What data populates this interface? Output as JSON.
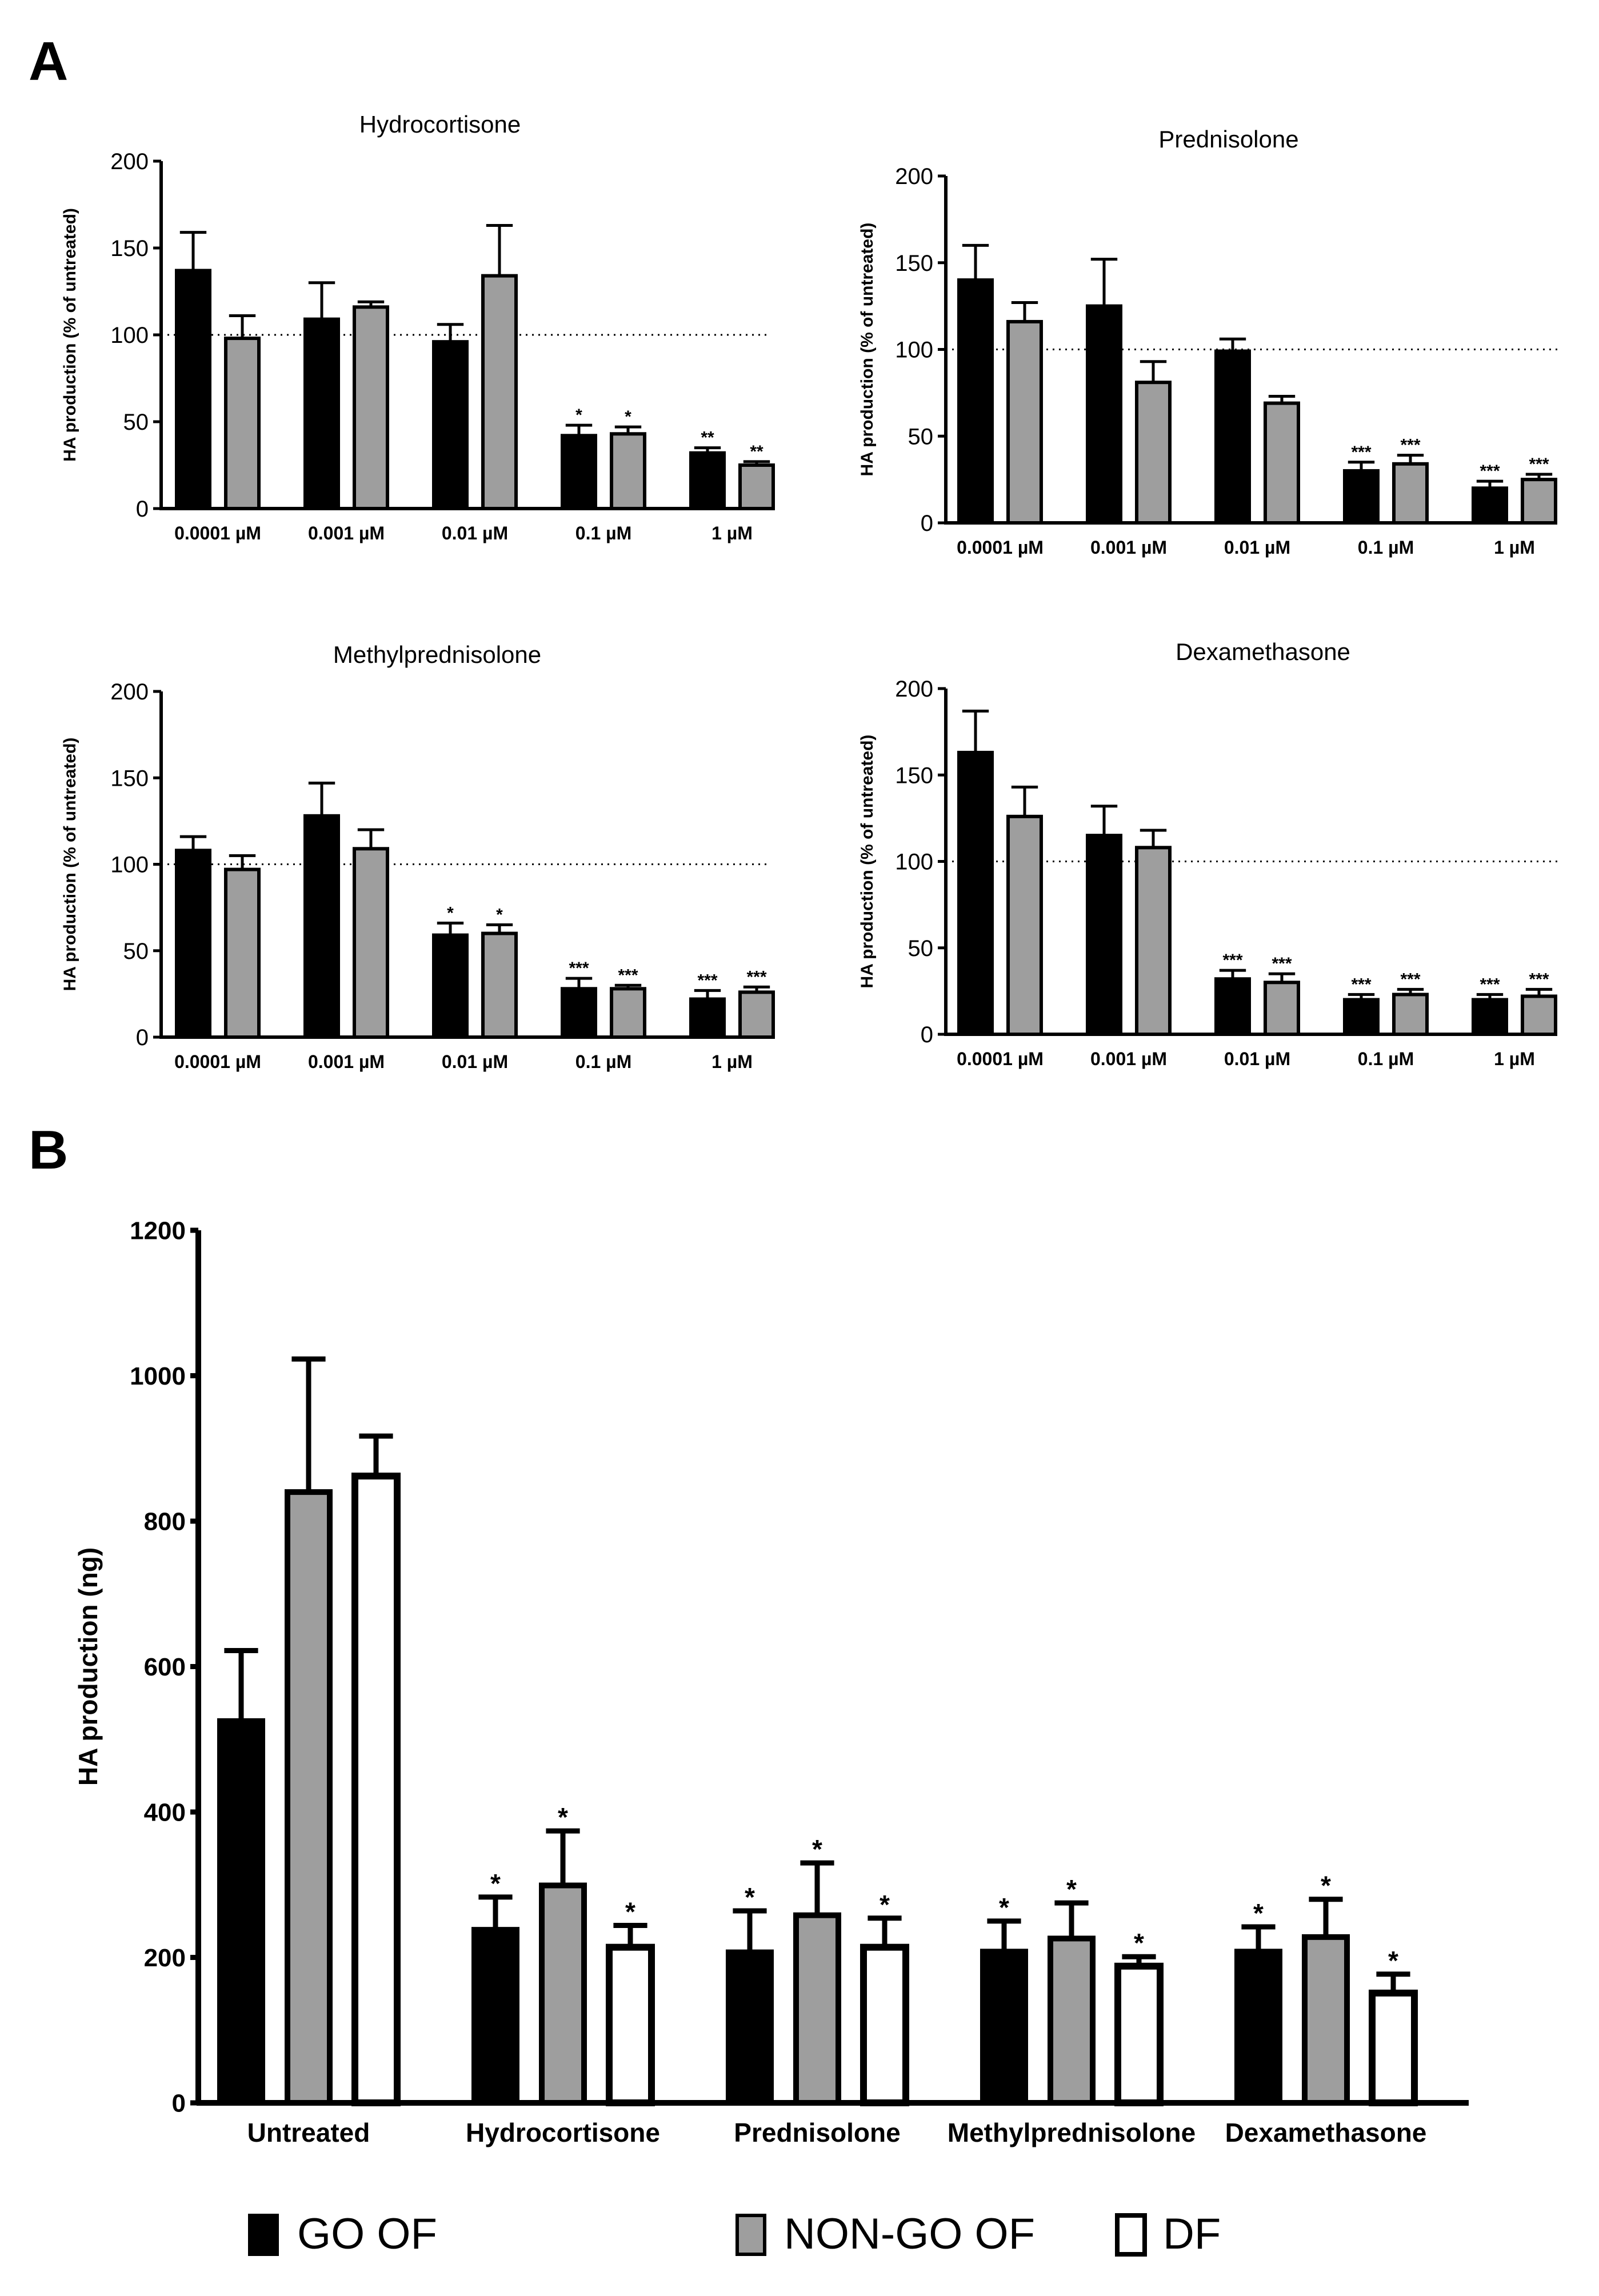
{
  "panel_labels": {
    "a": "A",
    "b": "B"
  },
  "colors": {
    "go_of": "#000000",
    "non_go_of": "#9e9e9e",
    "df": "#ffffff",
    "stroke": "#000000"
  },
  "legend": [
    {
      "key": "go_of",
      "label": "GO OF"
    },
    {
      "key": "non_go_of",
      "label": "NON-GO OF"
    },
    {
      "key": "df",
      "label": "DF"
    }
  ],
  "chart_data": [
    {
      "type": "bar",
      "title": "Hydrocortisone",
      "ylabel": "HA production (% of untreated)",
      "ylim": [
        0,
        200
      ],
      "yticks": [
        0,
        50,
        100,
        150,
        200
      ],
      "reference_line": 100,
      "categories": [
        "0.0001 µM",
        "0.001 µM",
        "0.01 µM",
        "0.1 µM",
        "1 µM"
      ],
      "series": [
        {
          "name": "GO OF",
          "values": [
            137,
            109,
            96,
            42,
            32
          ],
          "errors": [
            22,
            21,
            10,
            6,
            3
          ],
          "sig": [
            "",
            "",
            "",
            "*",
            "**"
          ]
        },
        {
          "name": "NON-GO OF",
          "values": [
            98,
            116,
            134,
            43,
            25
          ],
          "errors": [
            13,
            3,
            29,
            4,
            2
          ],
          "sig": [
            "",
            "",
            "",
            "*",
            "**"
          ]
        }
      ]
    },
    {
      "type": "bar",
      "title": "Prednisolone",
      "ylabel": "HA production (% of untreated)",
      "ylim": [
        0,
        200
      ],
      "yticks": [
        0,
        50,
        100,
        150,
        200
      ],
      "reference_line": 100,
      "categories": [
        "0.0001 µM",
        "0.001 µM",
        "0.01 µM",
        "0.1 µM",
        "1 µM"
      ],
      "series": [
        {
          "name": "GO OF",
          "values": [
            140,
            125,
            99,
            30,
            20
          ],
          "errors": [
            20,
            27,
            7,
            5,
            4
          ],
          "sig": [
            "",
            "",
            "",
            "***",
            "***"
          ]
        },
        {
          "name": "NON-GO OF",
          "values": [
            116,
            81,
            69,
            34,
            25
          ],
          "errors": [
            11,
            12,
            4,
            5,
            3
          ],
          "sig": [
            "",
            "",
            "",
            "***",
            "***"
          ]
        }
      ]
    },
    {
      "type": "bar",
      "title": "Methylprednisolone",
      "ylabel": "HA production (% of untreated)",
      "ylim": [
        0,
        200
      ],
      "yticks": [
        0,
        50,
        100,
        150,
        200
      ],
      "reference_line": 100,
      "categories": [
        "0.0001 µM",
        "0.001 µM",
        "0.01 µM",
        "0.1 µM",
        "1 µM"
      ],
      "series": [
        {
          "name": "GO OF",
          "values": [
            108,
            128,
            59,
            28,
            22
          ],
          "errors": [
            8,
            19,
            7,
            6,
            5
          ],
          "sig": [
            "",
            "",
            "*",
            "***",
            "***"
          ]
        },
        {
          "name": "NON-GO OF",
          "values": [
            97,
            109,
            60,
            28,
            26
          ],
          "errors": [
            8,
            11,
            5,
            2,
            3
          ],
          "sig": [
            "",
            "",
            "*",
            "***",
            "***"
          ]
        }
      ]
    },
    {
      "type": "bar",
      "title": "Dexamethasone",
      "ylabel": "HA production (% of untreated)",
      "ylim": [
        0,
        200
      ],
      "yticks": [
        0,
        50,
        100,
        150,
        200
      ],
      "reference_line": 100,
      "categories": [
        "0.0001 µM",
        "0.001 µM",
        "0.01 µM",
        "0.1 µM",
        "1 µM"
      ],
      "series": [
        {
          "name": "GO OF",
          "values": [
            163,
            115,
            32,
            20,
            20
          ],
          "errors": [
            24,
            17,
            5,
            3,
            3
          ],
          "sig": [
            "",
            "",
            "***",
            "***",
            "***"
          ]
        },
        {
          "name": "NON-GO OF",
          "values": [
            126,
            108,
            30,
            23,
            22
          ],
          "errors": [
            17,
            10,
            5,
            3,
            4
          ],
          "sig": [
            "",
            "",
            "***",
            "***",
            "***"
          ]
        }
      ]
    },
    {
      "type": "bar",
      "title": "",
      "ylabel": "HA production (ng)",
      "ylim": [
        0,
        1200
      ],
      "yticks": [
        0,
        200,
        400,
        600,
        800,
        1000,
        1200
      ],
      "categories": [
        "Untreated",
        "Hydrocortisone",
        "Prednisolone",
        "Methylprednisolone",
        "Dexamethasone"
      ],
      "series": [
        {
          "name": "GO OF",
          "values": [
            525,
            238,
            207,
            208,
            208
          ],
          "errors": [
            97,
            45,
            57,
            42,
            34
          ],
          "sig": [
            "",
            "*",
            "*",
            "*",
            "*"
          ]
        },
        {
          "name": "NON-GO OF",
          "values": [
            840,
            299,
            258,
            226,
            228
          ],
          "errors": [
            183,
            75,
            72,
            49,
            52
          ],
          "sig": [
            "",
            "*",
            "*",
            "*",
            "*"
          ]
        },
        {
          "name": "DF",
          "values": [
            862,
            214,
            214,
            188,
            151
          ],
          "errors": [
            55,
            30,
            40,
            13,
            26
          ],
          "sig": [
            "",
            "*",
            "*",
            "*",
            "*"
          ]
        }
      ]
    }
  ]
}
